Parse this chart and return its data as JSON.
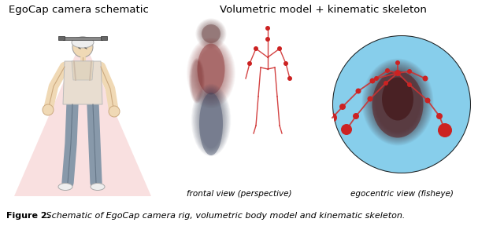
{
  "title_left": "EgoCap camera schematic",
  "title_right": "Volumetric model + kinematic skeleton",
  "label_middle": "frontal view (perspective)",
  "label_right": "egocentric view (fisheye)",
  "caption_bold": "Figure 2.",
  "caption_italic": " Schematic of EgoCap camera rig, volumetric body model and kinematic skeleton.",
  "bg_color": "#ffffff",
  "title_fontsize": 9.5,
  "label_fontsize": 7.5,
  "caption_fontsize": 8.0,
  "skeleton_color": "#cc2222",
  "fisheye_bg": "#87CEEB",
  "cone_color": "#f5c8c8"
}
